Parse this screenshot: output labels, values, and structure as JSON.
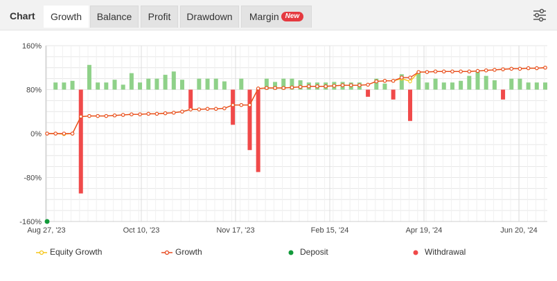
{
  "tabs": [
    {
      "label": "Chart",
      "active": false
    },
    {
      "label": "Growth",
      "active": true
    },
    {
      "label": "Balance",
      "active": false
    },
    {
      "label": "Profit",
      "active": false
    },
    {
      "label": "Drawdown",
      "active": false
    },
    {
      "label": "Margin",
      "active": false,
      "badge": "New"
    }
  ],
  "settings_icon": "sliders-icon",
  "colors": {
    "growth": "#e8481e",
    "equity": "#f5c518",
    "deposit": "#129a3a",
    "withdrawal": "#f04a4a",
    "positive_bar": "#8fd189",
    "grid": "#e6e6e6"
  },
  "chart_data": {
    "type": "line",
    "title": "",
    "xlabel": "",
    "ylabel": "",
    "ylim": [
      -160,
      160
    ],
    "yticks": [
      "160%",
      "80%",
      "0%",
      "-80%",
      "-160%"
    ],
    "x_tick_labels": [
      "Aug 27, '23",
      "Oct 10, '23",
      "Nov 17, '23",
      "Feb 15, '24",
      "Apr 19, '24",
      "Jun 20, '24"
    ],
    "x": [
      1,
      2,
      3,
      4,
      5,
      6,
      7,
      8,
      9,
      10,
      11,
      12,
      13,
      14,
      15,
      16,
      17,
      18,
      19,
      20,
      21,
      22,
      23,
      24,
      25,
      26,
      27,
      28,
      29,
      30,
      31,
      32,
      33,
      34,
      35,
      36,
      37,
      38,
      39,
      40,
      41,
      42,
      43,
      44,
      45,
      46,
      47,
      48,
      49,
      50,
      51,
      52,
      53,
      54,
      55,
      56,
      57,
      58,
      59,
      60
    ],
    "series": [
      {
        "name": "Equity Growth",
        "values": [
          0,
          0,
          -1,
          0,
          31,
          32,
          32,
          32,
          33,
          34,
          35,
          35,
          36,
          36,
          37,
          38,
          40,
          44,
          44,
          45,
          45,
          46,
          52,
          52,
          52,
          82,
          83,
          83,
          83,
          84,
          85,
          86,
          86,
          86,
          87,
          88,
          88,
          88,
          89,
          95,
          96,
          96,
          100,
          95,
          112,
          112,
          113,
          113,
          113,
          113,
          113,
          114,
          115,
          116,
          117,
          118,
          118,
          119,
          119,
          120
        ]
      },
      {
        "name": "Growth",
        "values": [
          0,
          0,
          0,
          0,
          31,
          32,
          32,
          32,
          33,
          34,
          35,
          35,
          36,
          36,
          37,
          38,
          40,
          44,
          44,
          45,
          45,
          46,
          52,
          52,
          52,
          82,
          83,
          83,
          83,
          84,
          85,
          86,
          86,
          86,
          87,
          88,
          88,
          88,
          89,
          95,
          96,
          96,
          102,
          102,
          112,
          112,
          113,
          113,
          113,
          113,
          113,
          114,
          115,
          116,
          117,
          118,
          118,
          119,
          119,
          120
        ]
      }
    ],
    "bars": [
      {
        "name": "Deposit",
        "x": [
          1
        ],
        "values": [
          0
        ]
      },
      {
        "name": "Withdrawal",
        "x": [
          5,
          18,
          23,
          25,
          26,
          39,
          42,
          44,
          55
        ],
        "values": [
          -189,
          -35,
          -64,
          -110,
          -150,
          -13,
          -18,
          -57,
          -18
        ]
      },
      {
        "name": "Growth bars",
        "x": [
          2,
          3,
          4,
          6,
          7,
          8,
          9,
          10,
          11,
          12,
          13,
          14,
          15,
          16,
          17,
          19,
          20,
          21,
          22,
          24,
          27,
          28,
          29,
          30,
          31,
          32,
          33,
          34,
          35,
          36,
          37,
          38,
          40,
          41,
          43,
          45,
          46,
          47,
          48,
          49,
          50,
          51,
          52,
          53,
          54,
          56,
          57,
          58,
          59,
          60
        ],
        "values": [
          13,
          13,
          16,
          45,
          13,
          13,
          18,
          9,
          30,
          13,
          20,
          20,
          27,
          33,
          18,
          20,
          20,
          20,
          15,
          20,
          20,
          14,
          20,
          20,
          17,
          13,
          13,
          13,
          14,
          14,
          13,
          13,
          20,
          11,
          28,
          33,
          13,
          20,
          13,
          13,
          16,
          25,
          33,
          25,
          17,
          20,
          20,
          13,
          13,
          13
        ]
      }
    ],
    "legend": [
      "Equity Growth",
      "Growth",
      "Deposit",
      "Withdrawal"
    ],
    "legend_position": "bottom",
    "grid": true
  }
}
